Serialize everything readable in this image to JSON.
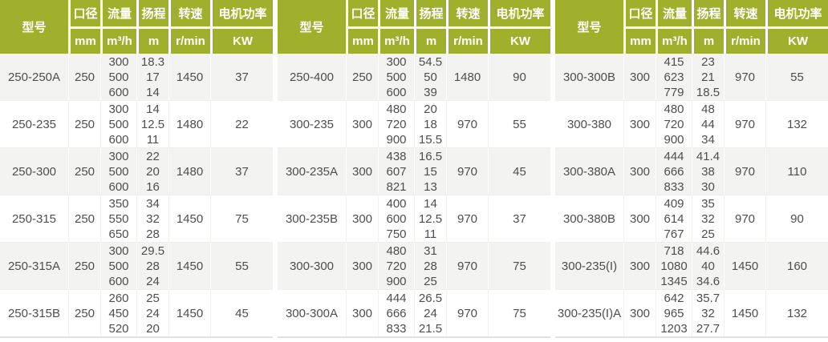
{
  "colors": {
    "header_bg": "#9fb02c",
    "header_text": "#ffffff",
    "row_stripe": "#f3f3f1",
    "body_text": "#4e4e50"
  },
  "chart_data": {
    "type": "table",
    "layout": "three tables side by side, striped rows, green two-row header",
    "columns": [
      {
        "key": "model",
        "label": "型号",
        "unit": ""
      },
      {
        "key": "diameter",
        "label": "口径",
        "unit": "mm"
      },
      {
        "key": "flow",
        "label": "流量",
        "unit": "m³/h"
      },
      {
        "key": "head",
        "label": "扬程",
        "unit": "m"
      },
      {
        "key": "speed",
        "label": "转速",
        "unit": "r/min"
      },
      {
        "key": "power",
        "label": "电机功率",
        "unit": "KW"
      }
    ],
    "tables": [
      {
        "rows": [
          {
            "model": "250-250A",
            "diameter": "250",
            "flow": [
              "300",
              "500",
              "600"
            ],
            "head": [
              "18.3",
              "17",
              "14"
            ],
            "speed": "1450",
            "power": "37"
          },
          {
            "model": "250-235",
            "diameter": "250",
            "flow": [
              "300",
              "500",
              "600"
            ],
            "head": [
              "14",
              "12.5",
              "11"
            ],
            "speed": "1480",
            "power": "22"
          },
          {
            "model": "250-300",
            "diameter": "250",
            "flow": [
              "300",
              "500",
              "600"
            ],
            "head": [
              "22",
              "20",
              "16"
            ],
            "speed": "1480",
            "power": "37"
          },
          {
            "model": "250-315",
            "diameter": "250",
            "flow": [
              "350",
              "550",
              "650"
            ],
            "head": [
              "34",
              "32",
              "28"
            ],
            "speed": "1450",
            "power": "75"
          },
          {
            "model": "250-315A",
            "diameter": "250",
            "flow": [
              "300",
              "500",
              "600"
            ],
            "head": [
              "29.5",
              "28",
              "24"
            ],
            "speed": "1450",
            "power": "55"
          },
          {
            "model": "250-315B",
            "diameter": "250",
            "flow": [
              "260",
              "450",
              "520"
            ],
            "head": [
              "25",
              "24",
              "20"
            ],
            "speed": "1450",
            "power": "45"
          }
        ]
      },
      {
        "rows": [
          {
            "model": "250-400",
            "diameter": "250",
            "flow": [
              "300",
              "500",
              "600"
            ],
            "head": [
              "54.5",
              "50",
              "39"
            ],
            "speed": "1480",
            "power": "90"
          },
          {
            "model": "300-235",
            "diameter": "300",
            "flow": [
              "480",
              "720",
              "900"
            ],
            "head": [
              "20",
              "18",
              "15.5"
            ],
            "speed": "970",
            "power": "55"
          },
          {
            "model": "300-235A",
            "diameter": "300",
            "flow": [
              "438",
              "607",
              "821"
            ],
            "head": [
              "16.5",
              "15",
              "13"
            ],
            "speed": "970",
            "power": "45"
          },
          {
            "model": "300-235B",
            "diameter": "300",
            "flow": [
              "400",
              "600",
              "750"
            ],
            "head": [
              "14",
              "12.5",
              "11"
            ],
            "speed": "970",
            "power": "37"
          },
          {
            "model": "300-300",
            "diameter": "300",
            "flow": [
              "480",
              "720",
              "900"
            ],
            "head": [
              "31",
              "28",
              "25"
            ],
            "speed": "970",
            "power": "75"
          },
          {
            "model": "300-300A",
            "diameter": "300",
            "flow": [
              "444",
              "666",
              "833"
            ],
            "head": [
              "26.5",
              "24",
              "21.5"
            ],
            "speed": "970",
            "power": "75"
          }
        ]
      },
      {
        "rows": [
          {
            "model": "300-300B",
            "diameter": "300",
            "flow": [
              "415",
              "623",
              "779"
            ],
            "head": [
              "23",
              "21",
              "18.5"
            ],
            "speed": "970",
            "power": "55"
          },
          {
            "model": "300-380",
            "diameter": "300",
            "flow": [
              "480",
              "720",
              "900"
            ],
            "head": [
              "48",
              "44",
              "34"
            ],
            "speed": "970",
            "power": "132"
          },
          {
            "model": "300-380A",
            "diameter": "300",
            "flow": [
              "444",
              "666",
              "833"
            ],
            "head": [
              "41.4",
              "38",
              "30"
            ],
            "speed": "970",
            "power": "110"
          },
          {
            "model": "300-380B",
            "diameter": "300",
            "flow": [
              "409",
              "614",
              "767"
            ],
            "head": [
              "35",
              "32",
              "25"
            ],
            "speed": "970",
            "power": "90"
          },
          {
            "model": "300-235(I)",
            "diameter": "300",
            "flow": [
              "718",
              "1080",
              "1345"
            ],
            "head": [
              "44.6",
              "40",
              "34.6"
            ],
            "speed": "1450",
            "power": "160"
          },
          {
            "model": "300-235(I)A",
            "diameter": "300",
            "flow": [
              "642",
              "965",
              "1203"
            ],
            "head": [
              "35.7",
              "32",
              "27.7"
            ],
            "speed": "1450",
            "power": "132"
          }
        ]
      }
    ]
  }
}
